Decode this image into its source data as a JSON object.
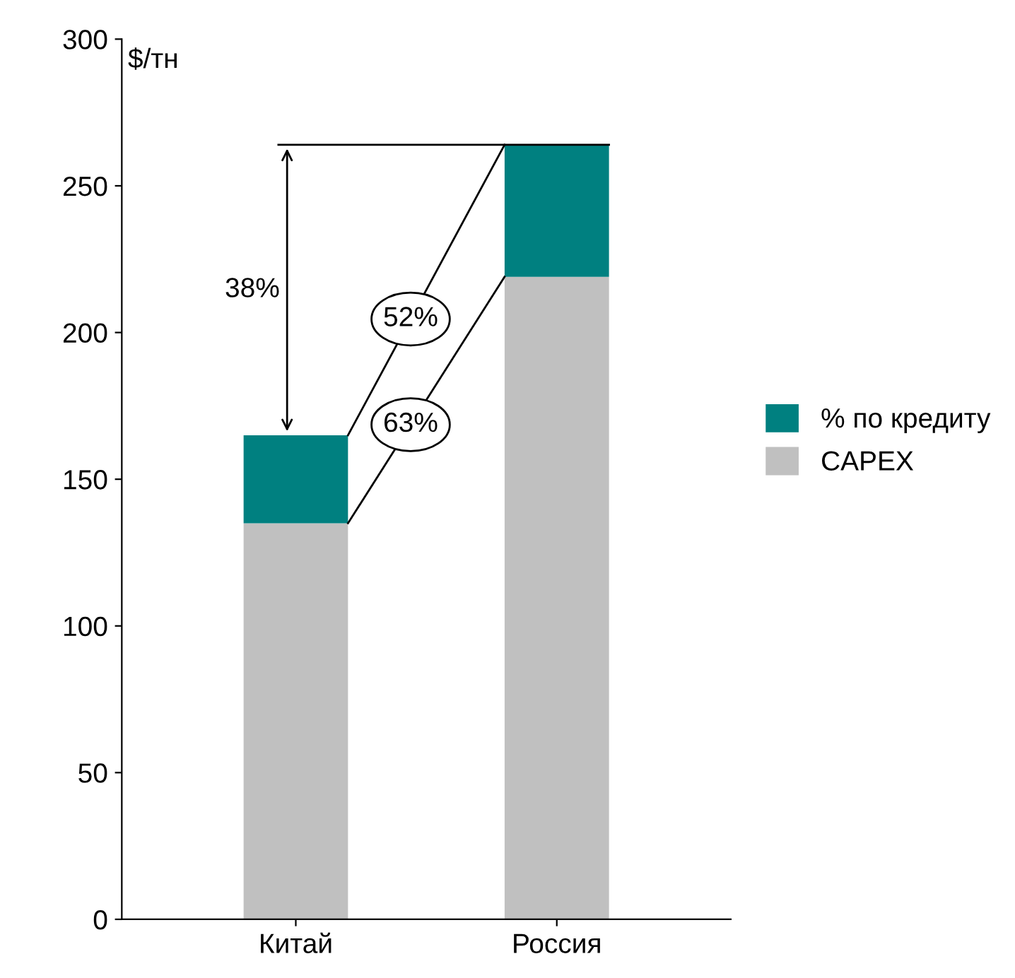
{
  "chart_data": {
    "type": "bar",
    "stacked": true,
    "ylabel": "$/тн",
    "categories": [
      "Китай",
      "Россия"
    ],
    "series": [
      {
        "name": "CAPEX",
        "color": "#c0c0c0",
        "values": [
          135,
          219
        ]
      },
      {
        "name": "% по кредиту",
        "color": "#008080",
        "values": [
          30,
          45
        ]
      }
    ],
    "ref_lines": [
      {
        "axis": "y",
        "value": 264,
        "color": "#000000"
      }
    ],
    "ylim": [
      0,
      300
    ],
    "yticks": [
      0,
      50,
      100,
      150,
      200,
      250,
      300
    ],
    "annotations": [
      "38%",
      "52%",
      "63%"
    ],
    "legend": "right",
    "grid": false
  }
}
